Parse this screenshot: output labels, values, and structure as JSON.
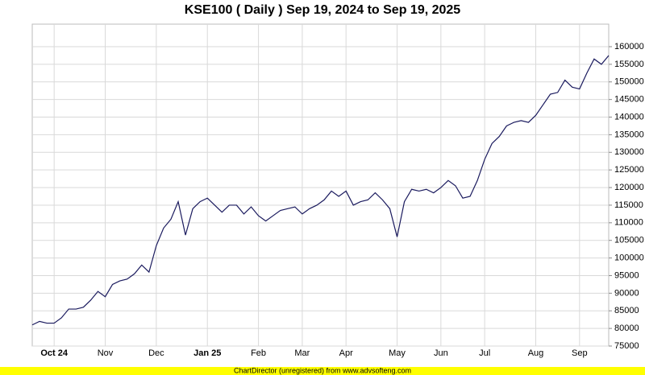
{
  "chart_data": {
    "type": "line",
    "title": "KSE100 ( Daily ) Sep 19, 2024 to Sep 19, 2025",
    "footer": "ChartDirector (unregistered) from www.advsofteng.com",
    "categories": [
      null,
      null,
      null,
      "Oct 24",
      null,
      null,
      null,
      null,
      null,
      null,
      "Nov",
      null,
      null,
      null,
      null,
      null,
      null,
      "Dec",
      null,
      null,
      null,
      null,
      null,
      null,
      "Jan 25",
      null,
      null,
      null,
      null,
      null,
      null,
      "Feb",
      null,
      null,
      null,
      null,
      null,
      "Mar",
      null,
      null,
      null,
      null,
      null,
      "Apr",
      null,
      null,
      null,
      null,
      null,
      null,
      "May",
      null,
      null,
      null,
      null,
      null,
      "Jun",
      null,
      null,
      null,
      null,
      null,
      "Jul",
      null,
      null,
      null,
      null,
      null,
      null,
      "Aug",
      null,
      null,
      null,
      null,
      null,
      "Sep",
      null,
      null,
      null,
      null
    ],
    "series": [
      {
        "name": "KSE100",
        "color": "#1a1a5e",
        "values": [
          81000,
          82000,
          81500,
          81500,
          83000,
          85500,
          85500,
          86000,
          88000,
          90500,
          89000,
          92500,
          93500,
          94000,
          95500,
          98000,
          96000,
          103500,
          108500,
          111000,
          116000,
          106500,
          114000,
          116000,
          117000,
          115000,
          113000,
          115000,
          115000,
          112500,
          114500,
          112000,
          110500,
          112000,
          113500,
          114000,
          114500,
          112500,
          114000,
          115000,
          116500,
          119000,
          117500,
          119000,
          115000,
          116000,
          116500,
          118500,
          116500,
          114000,
          106000,
          116000,
          119500,
          119000,
          119500,
          118500,
          120000,
          122000,
          120500,
          117000,
          117500,
          122000,
          128000,
          132500,
          134500,
          137500,
          138500,
          139000,
          138500,
          140500,
          143500,
          146500,
          147000,
          150500,
          148500,
          148000,
          152500,
          156500,
          155000,
          157500
        ]
      }
    ],
    "ylim": [
      75000,
      166400
    ],
    "yticks": [
      75000,
      80000,
      85000,
      90000,
      95000,
      100000,
      105000,
      110000,
      115000,
      120000,
      125000,
      130000,
      135000,
      140000,
      145000,
      150000,
      155000,
      160000
    ],
    "grid": true
  }
}
